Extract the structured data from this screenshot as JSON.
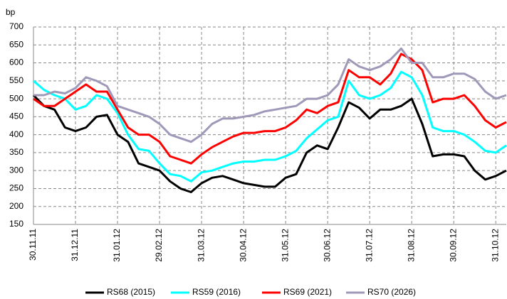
{
  "chart_data": {
    "type": "line",
    "y_label": "bp",
    "categories": [
      "30.11.11",
      null,
      null,
      null,
      "31.12.11",
      null,
      null,
      null,
      "31.01.12",
      null,
      null,
      null,
      "29.02.12",
      null,
      null,
      null,
      "31.03.12",
      null,
      null,
      null,
      "30.04.12",
      null,
      null,
      null,
      "31.05.12",
      null,
      null,
      null,
      "30.06.12",
      null,
      null,
      null,
      "31.07.12",
      null,
      null,
      null,
      "31.08.12",
      null,
      null,
      null,
      "30.09.12",
      null,
      null,
      null,
      "31.10.12",
      null
    ],
    "series": [
      {
        "name": "RS68 (2015)",
        "color": "#000000",
        "values": [
          510,
          480,
          470,
          420,
          410,
          420,
          450,
          455,
          400,
          380,
          320,
          310,
          300,
          270,
          250,
          240,
          265,
          280,
          285,
          275,
          265,
          260,
          255,
          255,
          280,
          290,
          350,
          370,
          360,
          420,
          490,
          475,
          445,
          470,
          470,
          480,
          500,
          430,
          340,
          345,
          345,
          340,
          300,
          275,
          285,
          300
        ]
      },
      {
        "name": "RS59 (2016)",
        "color": "#00ffff",
        "values": [
          550,
          525,
          510,
          500,
          470,
          480,
          510,
          500,
          460,
          400,
          360,
          355,
          320,
          290,
          285,
          270,
          295,
          300,
          310,
          320,
          325,
          325,
          330,
          330,
          340,
          355,
          390,
          415,
          440,
          450,
          550,
          510,
          500,
          510,
          530,
          575,
          560,
          510,
          420,
          410,
          410,
          400,
          380,
          355,
          350,
          370
        ]
      },
      {
        "name": "RS69 (2021)",
        "color": "#ff0000",
        "values": [
          500,
          480,
          480,
          500,
          520,
          540,
          520,
          520,
          470,
          420,
          400,
          400,
          380,
          340,
          330,
          320,
          345,
          365,
          380,
          395,
          405,
          405,
          410,
          410,
          420,
          440,
          470,
          460,
          480,
          490,
          580,
          560,
          560,
          540,
          570,
          625,
          610,
          580,
          490,
          500,
          500,
          510,
          480,
          440,
          420,
          435
        ]
      },
      {
        "name": "RS70 (2026)",
        "color": "#a098b8",
        "values": [
          510,
          510,
          520,
          515,
          530,
          560,
          550,
          535,
          480,
          470,
          460,
          450,
          430,
          400,
          390,
          380,
          400,
          430,
          445,
          445,
          450,
          455,
          465,
          470,
          475,
          480,
          500,
          500,
          510,
          540,
          610,
          590,
          580,
          590,
          610,
          640,
          600,
          600,
          560,
          560,
          570,
          570,
          555,
          520,
          500,
          510
        ]
      }
    ],
    "ylim": [
      150,
      700
    ],
    "yticks": [
      150,
      200,
      250,
      300,
      350,
      400,
      450,
      500,
      550,
      600,
      650,
      700
    ],
    "grid": true
  }
}
